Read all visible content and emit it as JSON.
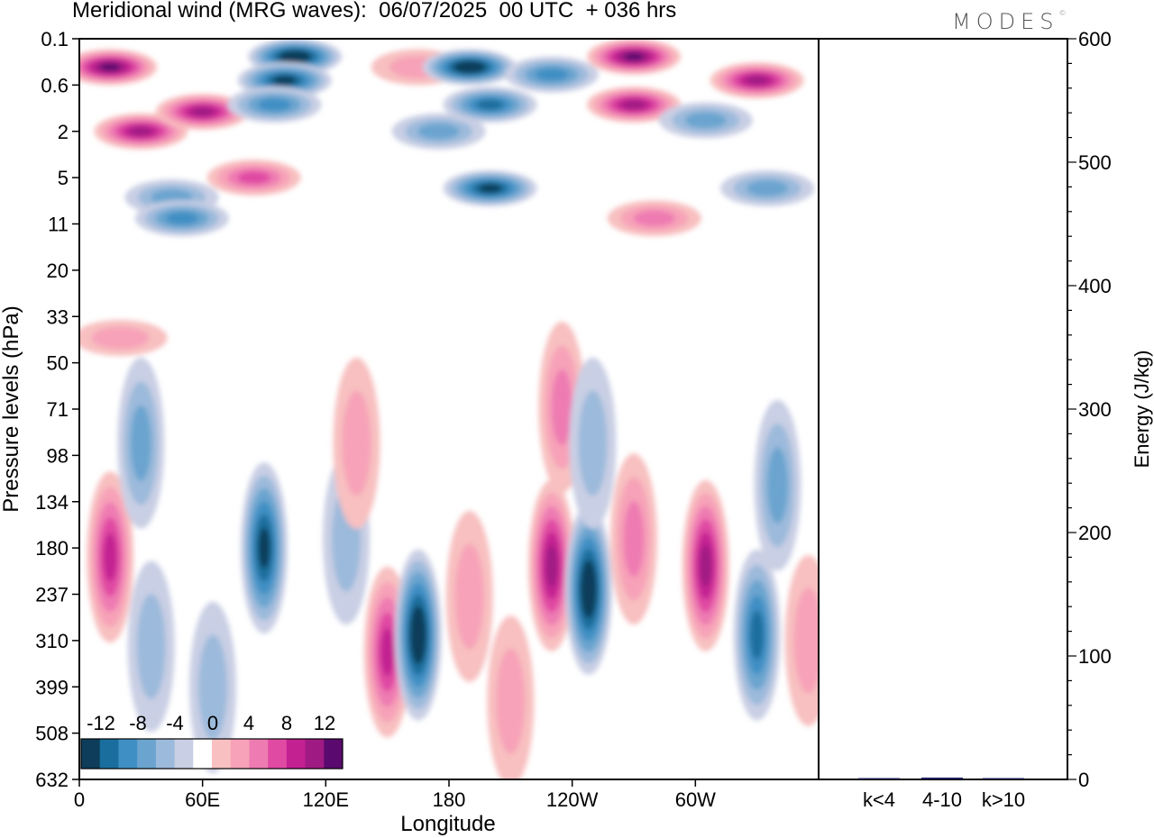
{
  "title": "Meridional wind (MRG waves):  06/07/2025  00 UTC  + 036 hrs",
  "logo": "MODES",
  "logo_mark": "©",
  "chart_data": [
    {
      "type": "heatmap",
      "subtype": "filled contour (longitude-pressure cross-section)",
      "title": "Meridional wind (MRG waves):  06/07/2025  00 UTC  + 036 hrs",
      "xlabel": "Longitude",
      "ylabel": "Pressure levels (hPa)",
      "x_ticks": [
        "0",
        "60E",
        "120E",
        "180",
        "120W",
        "60W"
      ],
      "x_tick_degrees": [
        0,
        60,
        120,
        180,
        240,
        300
      ],
      "xlim": [
        0,
        360
      ],
      "y_ticks": [
        "0.1",
        "0.6",
        "2",
        "5",
        "11",
        "20",
        "33",
        "50",
        "71",
        "98",
        "134",
        "180",
        "237",
        "310",
        "399",
        "508",
        "632"
      ],
      "colorbar": {
        "labels": [
          "-12",
          "-8",
          "-4",
          "0",
          "4",
          "8",
          "12"
        ],
        "levels": [
          -14,
          -12,
          -10,
          -8,
          -6,
          -4,
          -2,
          2,
          4,
          6,
          8,
          10,
          12,
          14
        ],
        "colors": [
          "#0d3d5a",
          "#1a6e9d",
          "#3f8fc4",
          "#6aa4cf",
          "#9cbadb",
          "#c9cfe4",
          "#ffffff",
          "#f8c0c0",
          "#f7a2b8",
          "#ee7cb2",
          "#e04aa3",
          "#c32092",
          "#a01a84",
          "#5a0a6e"
        ]
      },
      "features": [
        {
          "lon": 15,
          "level": 0.3,
          "value": 14
        },
        {
          "lon": 30,
          "level": 2,
          "value": 12
        },
        {
          "lon": 60,
          "level": 1.2,
          "value": 11
        },
        {
          "lon": 45,
          "level": 7,
          "value": -5
        },
        {
          "lon": 105,
          "level": 0.2,
          "value": -14
        },
        {
          "lon": 100,
          "level": 0.5,
          "value": -12
        },
        {
          "lon": 95,
          "level": 1,
          "value": -8
        },
        {
          "lon": 85,
          "level": 5,
          "value": 8
        },
        {
          "lon": 50,
          "level": 10,
          "value": -7
        },
        {
          "lon": 165,
          "level": 0.3,
          "value": 4
        },
        {
          "lon": 190,
          "level": 0.3,
          "value": -13
        },
        {
          "lon": 200,
          "level": 1,
          "value": -10
        },
        {
          "lon": 175,
          "level": 2,
          "value": -5
        },
        {
          "lon": 200,
          "level": 6,
          "value": -11
        },
        {
          "lon": 230,
          "level": 0.4,
          "value": -8
        },
        {
          "lon": 270,
          "level": 0.2,
          "value": 14
        },
        {
          "lon": 270,
          "level": 1,
          "value": 12
        },
        {
          "lon": 330,
          "level": 0.5,
          "value": 12
        },
        {
          "lon": 305,
          "level": 1.5,
          "value": -6
        },
        {
          "lon": 280,
          "level": 10,
          "value": 5
        },
        {
          "lon": 335,
          "level": 6,
          "value": -5
        },
        {
          "lon": 20,
          "level": 40,
          "value": 3
        },
        {
          "lon": 15,
          "level": 190,
          "value": 10
        },
        {
          "lon": 30,
          "level": 90,
          "value": -5
        },
        {
          "lon": 35,
          "level": 320,
          "value": -4
        },
        {
          "lon": 65,
          "level": 400,
          "value": -4
        },
        {
          "lon": 90,
          "level": 180,
          "value": -11
        },
        {
          "lon": 130,
          "level": 170,
          "value": -3
        },
        {
          "lon": 135,
          "level": 90,
          "value": 3
        },
        {
          "lon": 150,
          "level": 330,
          "value": 9
        },
        {
          "lon": 165,
          "level": 300,
          "value": -14
        },
        {
          "lon": 190,
          "level": 240,
          "value": 4
        },
        {
          "lon": 210,
          "level": 430,
          "value": 3
        },
        {
          "lon": 230,
          "level": 200,
          "value": 12
        },
        {
          "lon": 248,
          "level": 230,
          "value": -13
        },
        {
          "lon": 235,
          "level": 70,
          "value": 6
        },
        {
          "lon": 250,
          "level": 90,
          "value": -3
        },
        {
          "lon": 270,
          "level": 170,
          "value": 6
        },
        {
          "lon": 305,
          "level": 200,
          "value": 11
        },
        {
          "lon": 330,
          "level": 300,
          "value": -9
        },
        {
          "lon": 340,
          "level": 120,
          "value": -5
        },
        {
          "lon": 355,
          "level": 310,
          "value": 4
        }
      ]
    },
    {
      "type": "bar",
      "categories": [
        "k<4",
        "4-10",
        "k>10"
      ],
      "values": [
        0.5,
        1.5,
        0.3
      ],
      "ylabel": "Energy (J/kg)",
      "ylim": [
        0,
        600
      ],
      "y_ticks": [
        "0",
        "100",
        "200",
        "300",
        "400",
        "500",
        "600"
      ],
      "bar_color": "#1c1c5a"
    }
  ]
}
